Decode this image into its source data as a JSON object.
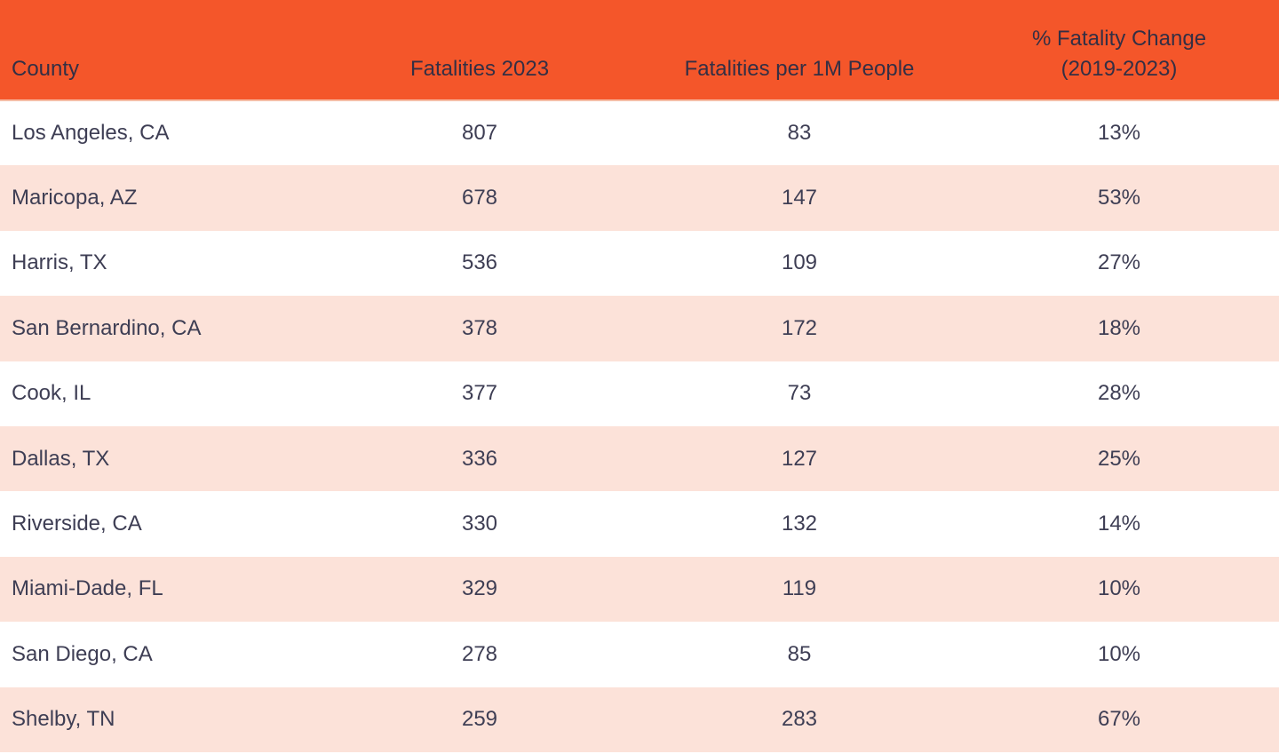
{
  "colors": {
    "header_background": "#F4562A",
    "header_text": "#342F44",
    "row_alt_background": "#FCE2D9",
    "row_background": "#FFFFFF",
    "body_text": "#3E3E54"
  },
  "table": {
    "columns": [
      {
        "key": "county",
        "label": "County",
        "align": "left"
      },
      {
        "key": "fatalities_2023",
        "label": "Fatalities 2023",
        "align": "center"
      },
      {
        "key": "fatalities_per_1m",
        "label": "Fatalities per 1M People",
        "align": "center"
      },
      {
        "key": "pct_fatality_change",
        "label": "% Fatality Change",
        "label2": "(2019-2023)",
        "align": "center"
      }
    ],
    "rows": [
      {
        "county": "Los Angeles, CA",
        "fatalities_2023": "807",
        "fatalities_per_1m": "83",
        "pct_fatality_change": "13%"
      },
      {
        "county": "Maricopa, AZ",
        "fatalities_2023": "678",
        "fatalities_per_1m": "147",
        "pct_fatality_change": "53%"
      },
      {
        "county": "Harris, TX",
        "fatalities_2023": "536",
        "fatalities_per_1m": "109",
        "pct_fatality_change": "27%"
      },
      {
        "county": "San Bernardino, CA",
        "fatalities_2023": "378",
        "fatalities_per_1m": "172",
        "pct_fatality_change": "18%"
      },
      {
        "county": "Cook, IL",
        "fatalities_2023": "377",
        "fatalities_per_1m": "73",
        "pct_fatality_change": "28%"
      },
      {
        "county": "Dallas, TX",
        "fatalities_2023": "336",
        "fatalities_per_1m": "127",
        "pct_fatality_change": "25%"
      },
      {
        "county": "Riverside, CA",
        "fatalities_2023": "330",
        "fatalities_per_1m": "132",
        "pct_fatality_change": "14%"
      },
      {
        "county": "Miami-Dade, FL",
        "fatalities_2023": "329",
        "fatalities_per_1m": "119",
        "pct_fatality_change": "10%"
      },
      {
        "county": "San Diego, CA",
        "fatalities_2023": "278",
        "fatalities_per_1m": "85",
        "pct_fatality_change": "10%"
      },
      {
        "county": "Shelby, TN",
        "fatalities_2023": "259",
        "fatalities_per_1m": "283",
        "pct_fatality_change": "67%"
      }
    ]
  },
  "chart_data": {
    "type": "table",
    "title": "",
    "columns": [
      "County",
      "Fatalities 2023",
      "Fatalities per 1M People",
      "% Fatality Change (2019-2023)"
    ],
    "rows": [
      [
        "Los Angeles, CA",
        807,
        83,
        "13%"
      ],
      [
        "Maricopa, AZ",
        678,
        147,
        "53%"
      ],
      [
        "Harris, TX",
        536,
        109,
        "27%"
      ],
      [
        "San Bernardino, CA",
        378,
        172,
        "18%"
      ],
      [
        "Cook, IL",
        377,
        73,
        "28%"
      ],
      [
        "Dallas, TX",
        336,
        127,
        "25%"
      ],
      [
        "Riverside, CA",
        330,
        132,
        "14%"
      ],
      [
        "Miami-Dade, FL",
        329,
        119,
        "10%"
      ],
      [
        "San Diego, CA",
        278,
        85,
        "10%"
      ],
      [
        "Shelby, TN",
        259,
        283,
        "67%"
      ]
    ],
    "layout_hints": {
      "header_fill": "#F4562A",
      "zebra_striping": true,
      "zebra_fill": "#FCE2D9",
      "first_column_align": "left",
      "other_columns_align": "center"
    }
  }
}
